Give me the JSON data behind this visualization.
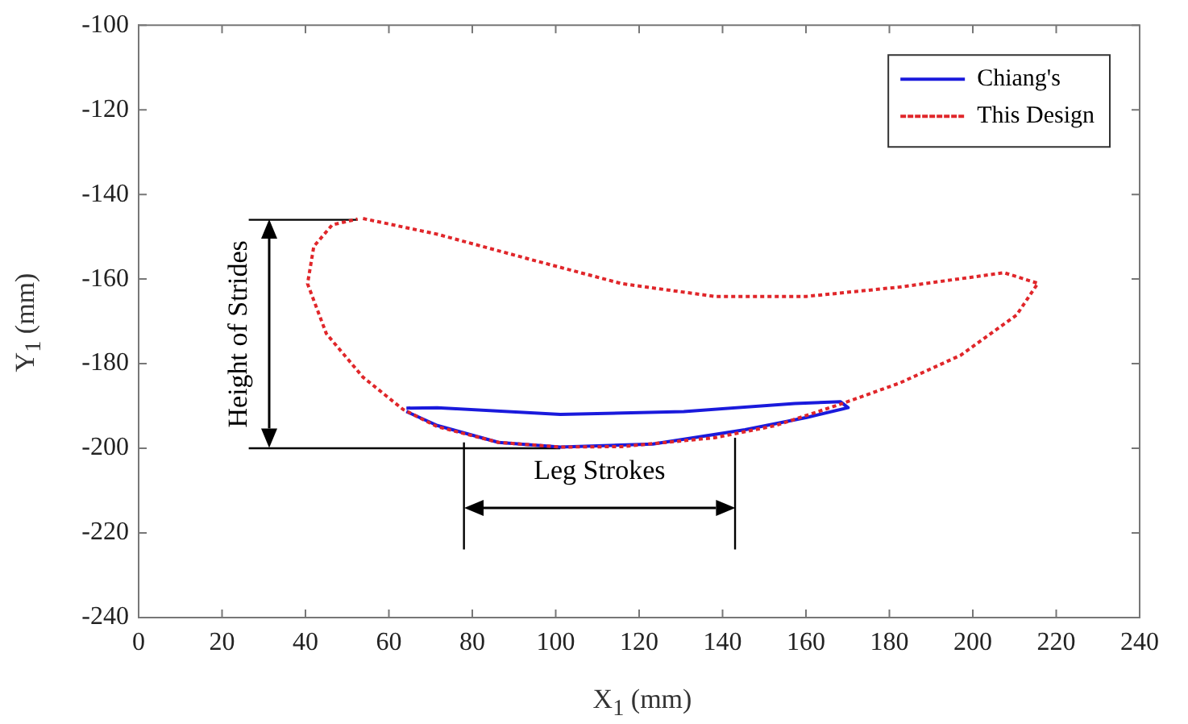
{
  "chart_data": {
    "type": "line",
    "xlabel": "X$_{1}$ (mm)",
    "ylabel": "Y$_{1}$ (mm)",
    "xlim": [
      0,
      240
    ],
    "xticks": [
      0,
      20,
      40,
      60,
      80,
      100,
      120,
      140,
      160,
      180,
      200,
      220,
      240
    ],
    "ylim": [
      -240,
      -100
    ],
    "yticks": [
      -240,
      -220,
      -200,
      -180,
      -160,
      -140,
      -120,
      -100
    ],
    "grid": false,
    "legend": "top right",
    "marker": "none",
    "series": [
      {
        "name": "Chiang's",
        "color": "#1a1adc",
        "line_style": "solid",
        "x": [
          64.2,
          71.6,
          101.1,
          130.7,
          157.3,
          168.3,
          170.1,
          160.2,
          145.4,
          123.3,
          101.1,
          86.3,
          71.6,
          64.2
        ],
        "values": [
          -190.5,
          -190.4,
          -192,
          -191.3,
          -189.4,
          -189,
          -190.4,
          -192.7,
          -195.6,
          -199,
          -199.7,
          -198.6,
          -194.6,
          -191.3
        ]
      },
      {
        "name": "This Design",
        "color": "#e0262a",
        "line_style": "dotted",
        "x": [
          53.8,
          71.6,
          93.7,
          115.9,
          138.1,
          160.2,
          182.4,
          207.5,
          215.6,
          210.5,
          197.1,
          182.4,
          167.6,
          152.8,
          138.1,
          115.9,
          101.1,
          86.3,
          71.6,
          63.4,
          53.8,
          45,
          40.5,
          42,
          46.4,
          52.5
        ],
        "values": [
          -145.7,
          -149.4,
          -155.3,
          -161.1,
          -164.1,
          -164.1,
          -161.9,
          -158.5,
          -161,
          -168.5,
          -178,
          -184.6,
          -189.8,
          -194.6,
          -197.5,
          -199.6,
          -199.7,
          -198.6,
          -194.9,
          -190.8,
          -183.2,
          -172.9,
          -161.1,
          -152.3,
          -147.2,
          -145.8
        ]
      }
    ],
    "ref_lines": [
      {
        "axis": "y",
        "value": -146,
        "color": "#000000"
      },
      {
        "axis": "y",
        "value": -200,
        "color": "#000000",
        "label": "Height of Strides"
      },
      {
        "axis": "x",
        "value": 78,
        "color": "#000000"
      },
      {
        "axis": "x",
        "value": 143,
        "color": "#000000",
        "label": "Leg Strokes"
      }
    ]
  }
}
